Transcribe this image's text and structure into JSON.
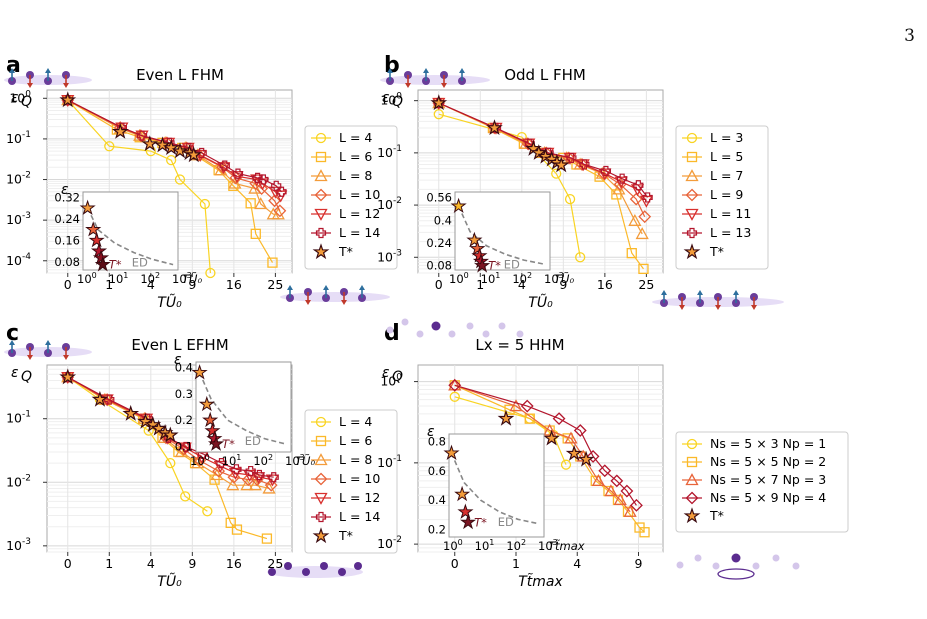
{
  "page_number": "3",
  "chart_data": [
    {
      "panel": "a",
      "type": "line",
      "title": "Even L FHM",
      "xlabel": "TŨ₀",
      "ylabel": "ε_Q",
      "x_ticks": [
        "0",
        "1",
        "4",
        "9",
        "16",
        "25"
      ],
      "y_ticks": [
        "10⁰",
        "10⁻¹",
        "10⁻²",
        "10⁻³",
        "10⁻⁴"
      ],
      "y_log": true,
      "ylim": [
        5e-05,
        1.6
      ],
      "grid": true,
      "legend": "right",
      "series": [
        {
          "name": "L = 4",
          "color": "#f9d423",
          "marker": "circle",
          "x": [
            0,
            1,
            4,
            6.2,
            7.3,
            10.9,
            11.8
          ],
          "y": [
            0.9,
            0.066,
            0.05,
            0.03,
            0.01,
            0.0025,
            5e-05
          ]
        },
        {
          "name": "L = 6",
          "color": "#fbb929",
          "marker": "square",
          "x": [
            0,
            1.4,
            3,
            5.2,
            7.6,
            9.4,
            13.2,
            15.9,
            19.4,
            20.5,
            24.3
          ],
          "y": [
            0.9,
            0.17,
            0.11,
            0.08,
            0.06,
            0.04,
            0.017,
            0.007,
            0.0026,
            0.00046,
            9e-05
          ]
        },
        {
          "name": "L = 8",
          "color": "#f39c3b",
          "marker": "triangle-up",
          "x": [
            0,
            1.6,
            3,
            5.5,
            8,
            9.8,
            13.6,
            16.2,
            20.3,
            21.6,
            24.5,
            25.7
          ],
          "y": [
            0.9,
            0.18,
            0.12,
            0.08,
            0.06,
            0.04,
            0.017,
            0.008,
            0.006,
            0.0025,
            0.0014,
            0.0014
          ]
        },
        {
          "name": "L = 10",
          "color": "#e8643a",
          "marker": "diamond",
          "x": [
            0,
            1.6,
            3.1,
            5.7,
            8.2,
            10,
            13.9,
            16.4,
            20.5,
            21.8,
            24.8,
            26.1
          ],
          "y": [
            0.9,
            0.19,
            0.12,
            0.08,
            0.06,
            0.04,
            0.02,
            0.011,
            0.008,
            0.006,
            0.003,
            0.0017
          ]
        },
        {
          "name": "L = 12",
          "color": "#d8302e",
          "marker": "triangle-down",
          "x": [
            0,
            1.7,
            3.2,
            5.9,
            8.4,
            10.2,
            14.1,
            16.6,
            20.7,
            22,
            25,
            26.3
          ],
          "y": [
            0.9,
            0.19,
            0.12,
            0.08,
            0.06,
            0.04,
            0.02,
            0.012,
            0.01,
            0.008,
            0.005,
            0.004
          ]
        },
        {
          "name": "L = 14",
          "color": "#b3162d",
          "marker": "plus",
          "x": [
            0,
            1.7,
            3.2,
            6,
            8.5,
            10.4,
            14.3,
            16.8,
            20.9,
            22.2,
            25.2,
            26.5
          ],
          "y": [
            0.9,
            0.19,
            0.12,
            0.08,
            0.06,
            0.045,
            0.022,
            0.014,
            0.011,
            0.01,
            0.007,
            0.005
          ]
        },
        {
          "name": "T*",
          "color": "#7a1522",
          "marker": "star",
          "x": [
            0,
            1.6,
            3.9,
            5.2,
            6.2,
            7.3,
            8.6,
            9.2
          ],
          "y": [
            0.9,
            0.15,
            0.075,
            0.07,
            0.06,
            0.05,
            0.045,
            0.04
          ]
        }
      ],
      "inset": {
        "type": "scatter",
        "ylabel": "ε",
        "x_log": true,
        "x_ticks": [
          "10⁰",
          "10¹",
          "10²",
          "10³"
        ],
        "y_ticks": [
          "0.32",
          "0.24",
          "0.16",
          "0.08"
        ],
        "ylim": [
          0.05,
          0.34
        ],
        "xlim": [
          1,
          1000
        ],
        "points_x": [
          1.4,
          2.1,
          2.7,
          3.2,
          3.7,
          4.2
        ],
        "points_y": [
          0.28,
          0.2,
          0.16,
          0.12,
          0.095,
          0.07
        ],
        "point_colors": [
          "#f39c3b",
          "#e8643a",
          "#d8302e",
          "#b3162d",
          "#8a1020",
          "#5c0c16"
        ],
        "ed_label": "ED",
        "ed_x": [
          1.4,
          3,
          10,
          40,
          150,
          700
        ],
        "ed_y": [
          0.28,
          0.2,
          0.15,
          0.115,
          0.09,
          0.07
        ],
        "tstar_label": "T*",
        "xaxis_label": "TŨ₀"
      }
    },
    {
      "panel": "b",
      "type": "line",
      "title": "Odd L FHM",
      "xlabel": "TŨ₀",
      "ylabel": "ε_Q",
      "x_ticks": [
        "0",
        "1",
        "4",
        "9",
        "16",
        "25"
      ],
      "y_ticks": [
        "10⁰",
        "10⁻¹",
        "10⁻²",
        "10⁻³"
      ],
      "y_log": true,
      "ylim": [
        0.0005,
        1.6
      ],
      "grid": true,
      "legend": "right",
      "series": [
        {
          "name": "L = 3",
          "color": "#f9d423",
          "marker": "circle",
          "x": [
            0,
            4,
            8,
            10,
            11.6
          ],
          "y": [
            0.55,
            0.2,
            0.04,
            0.013,
            0.001
          ]
        },
        {
          "name": "L = 5",
          "color": "#fbb929",
          "marker": "square",
          "x": [
            0,
            1.7,
            4.2,
            6.1,
            9,
            11,
            15,
            18.3,
            21.6,
            24.3
          ],
          "y": [
            0.9,
            0.3,
            0.15,
            0.1,
            0.08,
            0.06,
            0.035,
            0.016,
            0.0012,
            0.0006
          ]
        },
        {
          "name": "L = 7",
          "color": "#f39c3b",
          "marker": "triangle-up",
          "x": [
            0,
            1.8,
            4.4,
            6.5,
            9.5,
            11.6,
            15.5,
            18.8,
            22.3,
            24
          ],
          "y": [
            0.9,
            0.3,
            0.15,
            0.1,
            0.08,
            0.06,
            0.04,
            0.02,
            0.005,
            0.0028
          ]
        },
        {
          "name": "L = 9",
          "color": "#e8643a",
          "marker": "diamond",
          "x": [
            0,
            1.8,
            4.6,
            6.7,
            9.8,
            11.9,
            15.8,
            19.1,
            22.6,
            24.6
          ],
          "y": [
            0.9,
            0.3,
            0.15,
            0.1,
            0.08,
            0.06,
            0.04,
            0.025,
            0.013,
            0.006
          ]
        },
        {
          "name": "L = 11",
          "color": "#d8302e",
          "marker": "triangle-down",
          "x": [
            0,
            1.9,
            4.7,
            6.9,
            10,
            12.1,
            16,
            19.3,
            22.9,
            25
          ],
          "y": [
            0.9,
            0.3,
            0.15,
            0.1,
            0.08,
            0.06,
            0.04,
            0.028,
            0.02,
            0.012
          ]
        },
        {
          "name": "L = 13",
          "color": "#b3162d",
          "marker": "plus",
          "x": [
            0,
            1.9,
            4.8,
            7,
            10.2,
            12.3,
            16.2,
            19.5,
            23.1,
            25.3
          ],
          "y": [
            0.9,
            0.3,
            0.15,
            0.1,
            0.08,
            0.06,
            0.045,
            0.032,
            0.024,
            0.014
          ]
        },
        {
          "name": "T*",
          "color": "#7a1522",
          "marker": "star",
          "x": [
            0,
            1.8,
            5.2,
            5.8,
            6.6,
            7.4,
            8.1,
            8.7
          ],
          "y": [
            0.9,
            0.3,
            0.12,
            0.1,
            0.085,
            0.075,
            0.065,
            0.058
          ]
        }
      ],
      "inset": {
        "type": "scatter",
        "ylabel": "",
        "x_log": true,
        "x_ticks": [
          "10⁰",
          "10¹",
          "10²",
          "10³"
        ],
        "y_ticks": [
          "0.56",
          "0.4",
          "0.24",
          "0.08"
        ],
        "ylim": [
          0.05,
          0.6
        ],
        "xlim": [
          1,
          1000
        ],
        "points_x": [
          1.3,
          4.1,
          5.1,
          5.9,
          6.6,
          7.2
        ],
        "points_y": [
          0.5,
          0.26,
          0.2,
          0.15,
          0.11,
          0.08
        ],
        "point_colors": [
          "#fbb929",
          "#f39c3b",
          "#e8643a",
          "#d8302e",
          "#b3162d",
          "#7a1522"
        ],
        "ed_label": "ED",
        "ed_x": [
          1.3,
          3,
          10,
          40,
          150,
          700
        ],
        "ed_y": [
          0.5,
          0.32,
          0.22,
          0.16,
          0.12,
          0.09
        ],
        "tstar_label": "T*",
        "xaxis_label": "TŨ₀"
      }
    },
    {
      "panel": "c",
      "type": "line",
      "title": "Even L EFHM",
      "xlabel": "TŨ₀",
      "ylabel": "ε_Q",
      "x_ticks": [
        "0",
        "1",
        "4",
        "9",
        "16",
        "25"
      ],
      "y_ticks": [
        "10⁻¹",
        "10⁻²",
        "10⁻³"
      ],
      "y_log": true,
      "ylim": [
        0.0008,
        0.7
      ],
      "grid": true,
      "legend": "right",
      "series": [
        {
          "name": "L = 4",
          "color": "#f9d423",
          "marker": "circle",
          "x": [
            0,
            0.6,
            3.8,
            6.1,
            8,
            11.3
          ],
          "y": [
            0.45,
            0.2,
            0.065,
            0.02,
            0.006,
            0.0035
          ]
        },
        {
          "name": "L = 6",
          "color": "#fbb929",
          "marker": "square",
          "x": [
            0,
            0.8,
            3.3,
            5.2,
            7.1,
            9.4,
            12.5,
            15.4,
            16.6,
            23
          ],
          "y": [
            0.45,
            0.2,
            0.1,
            0.05,
            0.03,
            0.02,
            0.011,
            0.0023,
            0.0018,
            0.0013
          ]
        },
        {
          "name": "L = 8",
          "color": "#f39c3b",
          "marker": "triangle-up",
          "x": [
            0,
            0.8,
            3.4,
            5.4,
            7.5,
            9.8,
            12.9,
            15.8,
            18.6,
            20.4,
            23.5
          ],
          "y": [
            0.45,
            0.2,
            0.1,
            0.05,
            0.03,
            0.02,
            0.013,
            0.009,
            0.009,
            0.009,
            0.008
          ]
        },
        {
          "name": "L = 10",
          "color": "#e8643a",
          "marker": "diamond",
          "x": [
            0,
            0.9,
            3.5,
            5.6,
            7.8,
            10.1,
            13.2,
            16,
            18.9,
            20.8,
            24
          ],
          "y": [
            0.45,
            0.2,
            0.1,
            0.05,
            0.033,
            0.022,
            0.015,
            0.012,
            0.011,
            0.011,
            0.009
          ]
        },
        {
          "name": "L = 12",
          "color": "#d8302e",
          "marker": "triangle-down",
          "x": [
            0,
            0.9,
            3.6,
            5.8,
            8,
            10.4,
            13.5,
            16.3,
            19.2,
            21.1,
            24.3
          ],
          "y": [
            0.45,
            0.2,
            0.1,
            0.05,
            0.035,
            0.025,
            0.018,
            0.014,
            0.013,
            0.012,
            0.011
          ]
        },
        {
          "name": "L = 14",
          "color": "#b3162d",
          "marker": "plus",
          "x": [
            0,
            1,
            3.7,
            5.9,
            8.1,
            10.6,
            13.7,
            16.5,
            19.4,
            21.3,
            24.6
          ],
          "y": [
            0.45,
            0.2,
            0.1,
            0.05,
            0.036,
            0.028,
            0.02,
            0.016,
            0.015,
            0.013,
            0.012
          ]
        },
        {
          "name": "T*",
          "color": "#7a1522",
          "marker": "star",
          "x": [
            0,
            0.6,
            2.3,
            3.5,
            4.2,
            4.8,
            5.5,
            6.1
          ],
          "y": [
            0.45,
            0.2,
            0.12,
            0.09,
            0.08,
            0.07,
            0.06,
            0.055
          ]
        }
      ],
      "inset": {
        "type": "scatter",
        "ylabel": "ε",
        "x_log": true,
        "x_ticks": [
          "10⁰",
          "10¹",
          "10²",
          "10³"
        ],
        "y_ticks": [
          "0.4",
          "0.3",
          "0.2",
          "0.1"
        ],
        "ylim": [
          0.08,
          0.42
        ],
        "xlim": [
          1,
          1000
        ],
        "points_x": [
          1.3,
          2.2,
          2.8,
          3.3,
          3.8,
          4.3
        ],
        "points_y": [
          0.38,
          0.26,
          0.2,
          0.16,
          0.13,
          0.11
        ],
        "point_colors": [
          "#f39c3b",
          "#f39c3b",
          "#e8643a",
          "#d8302e",
          "#b3162d",
          "#7a1522"
        ],
        "ed_label": "ED",
        "ed_x": [
          1.3,
          3,
          10,
          40,
          150,
          700
        ],
        "ed_y": [
          0.38,
          0.28,
          0.2,
          0.16,
          0.13,
          0.11
        ],
        "tstar_label": "T*",
        "xaxis_label": "TŨ₀"
      }
    },
    {
      "panel": "d",
      "type": "line",
      "title": "Lx = 5 HHM",
      "xlabel": "Tt̃max",
      "ylabel": "ε_Q",
      "x_ticks": [
        "0",
        "1",
        "4",
        "9"
      ],
      "y_ticks": [
        "10⁰",
        "10⁻¹",
        "10⁻²"
      ],
      "y_log": true,
      "ylim": [
        0.008,
        1.6
      ],
      "grid": true,
      "legend": "right",
      "series": [
        {
          "name": "Ns = 5 × 3 Np = 1",
          "color": "#f9d423",
          "marker": "circle",
          "x": [
            0,
            1.5,
            2.6,
            3.3
          ],
          "y": [
            0.65,
            0.35,
            0.22,
            0.095
          ]
        },
        {
          "name": "Ns = 5 × 5 Np = 2",
          "color": "#fbb929",
          "marker": "square",
          "x": [
            0,
            0.8,
            1.5,
            2.4,
            3.4,
            4.2,
            5.3,
            6.3,
            7.1,
            8,
            9.1,
            9.6
          ],
          "y": [
            0.9,
            0.45,
            0.35,
            0.25,
            0.2,
            0.12,
            0.06,
            0.045,
            0.035,
            0.025,
            0.016,
            0.014
          ]
        },
        {
          "name": "Ns = 5 × 7 Np = 3",
          "color": "#e8643a",
          "marker": "triangle-up",
          "x": [
            0,
            1,
            2.4,
            3.6,
            4.4,
            5.5,
            6.5,
            7.3,
            8.2
          ],
          "y": [
            0.9,
            0.5,
            0.25,
            0.2,
            0.12,
            0.06,
            0.045,
            0.035,
            0.025
          ]
        },
        {
          "name": "Ns = 5 × 9 Np = 4",
          "color": "#b3162d",
          "marker": "diamond",
          "x": [
            0,
            1.4,
            2.9,
            4.2,
            5.1,
            6,
            7,
            7.9,
            8.8
          ],
          "y": [
            0.9,
            0.5,
            0.35,
            0.25,
            0.12,
            0.08,
            0.06,
            0.045,
            0.03
          ]
        },
        {
          "name": "T*",
          "color": "#7a1522",
          "marker": "star",
          "x": [
            0.7,
            2.5,
            3.8,
            4.6
          ],
          "y": [
            0.35,
            0.2,
            0.13,
            0.11
          ]
        }
      ],
      "inset": {
        "type": "scatter",
        "ylabel": "ε",
        "x_log": true,
        "x_ticks": [
          "10⁰",
          "10¹",
          "10²",
          "10³"
        ],
        "y_ticks": [
          "0.8",
          "0.6",
          "0.4",
          "0.2"
        ],
        "ylim": [
          0.15,
          0.85
        ],
        "xlim": [
          1,
          1000
        ],
        "points_x": [
          1.2,
          2.6,
          3.3,
          4.0
        ],
        "points_y": [
          0.72,
          0.44,
          0.32,
          0.25
        ],
        "point_colors": [
          "#f39c3b",
          "#f39c3b",
          "#d8302e",
          "#7a1522"
        ],
        "ed_label": "ED",
        "ed_x": [
          1.2,
          3,
          10,
          40,
          150,
          700
        ],
        "ed_y": [
          0.72,
          0.52,
          0.4,
          0.32,
          0.27,
          0.24
        ],
        "tstar_label": "T*",
        "xaxis_label": "Tt̃max"
      }
    }
  ],
  "legend_labels_d": [
    "Ns = 5 × 3  Np = 1",
    "Ns = 5 × 5  Np = 2",
    "Ns = 5 × 7  Np = 3",
    "Ns = 5 × 9  Np = 4",
    "T*"
  ]
}
